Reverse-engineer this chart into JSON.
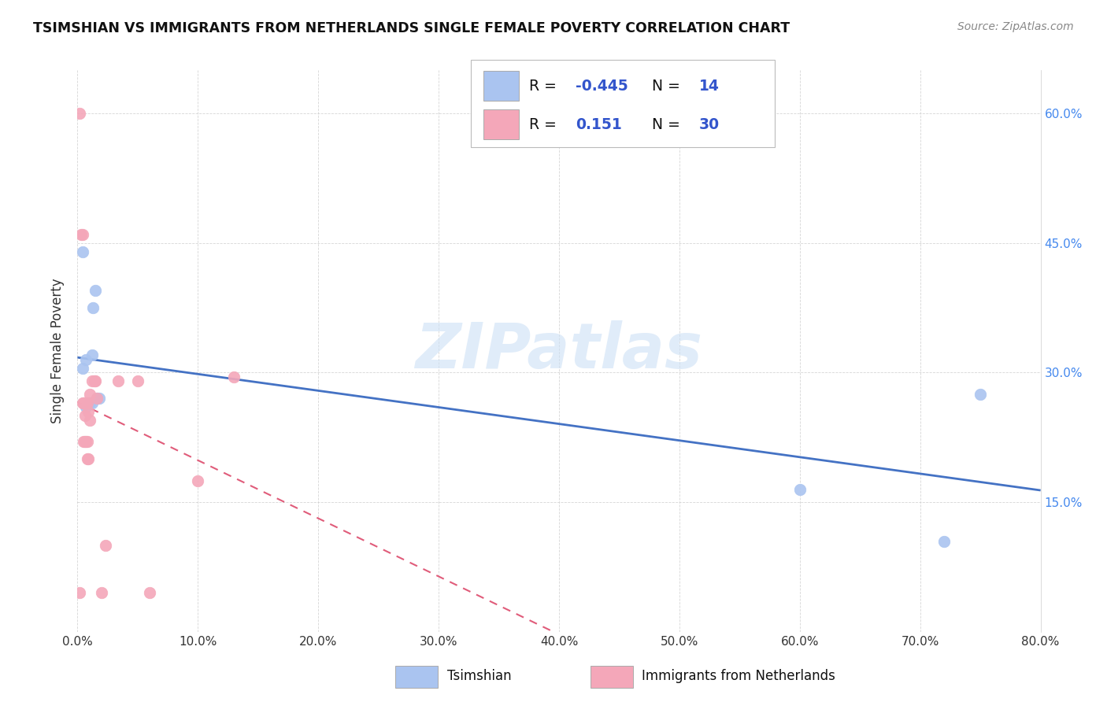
{
  "title": "TSIMSHIAN VS IMMIGRANTS FROM NETHERLANDS SINGLE FEMALE POVERTY CORRELATION CHART",
  "source": "Source: ZipAtlas.com",
  "ylabel": "Single Female Poverty",
  "xlim": [
    0.0,
    0.8
  ],
  "ylim": [
    0.0,
    0.65
  ],
  "tsimshian_color": "#aac4f0",
  "tsimshian_line_color": "#4472c4",
  "netherlands_color": "#f4a7b9",
  "netherlands_line_color": "#e05c7a",
  "tsimshian_R": -0.445,
  "tsimshian_N": 14,
  "netherlands_R": 0.151,
  "netherlands_N": 30,
  "legend_text_R": "R = ",
  "legend_text_N": "N = ",
  "legend_value_color": "#3355cc",
  "legend_label_color": "#111111",
  "right_axis_color": "#4488ee",
  "watermark": "ZIPatlas",
  "tsimshian_x": [
    0.004,
    0.004,
    0.007,
    0.007,
    0.01,
    0.012,
    0.012,
    0.013,
    0.015,
    0.016,
    0.018,
    0.6,
    0.72,
    0.75
  ],
  "tsimshian_y": [
    0.44,
    0.305,
    0.315,
    0.26,
    0.265,
    0.32,
    0.265,
    0.375,
    0.395,
    0.27,
    0.27,
    0.165,
    0.105,
    0.275
  ],
  "netherlands_x": [
    0.002,
    0.002,
    0.003,
    0.004,
    0.004,
    0.005,
    0.005,
    0.006,
    0.006,
    0.006,
    0.007,
    0.007,
    0.008,
    0.008,
    0.008,
    0.009,
    0.009,
    0.01,
    0.01,
    0.012,
    0.014,
    0.015,
    0.016,
    0.02,
    0.023,
    0.034,
    0.05,
    0.06,
    0.1,
    0.13
  ],
  "netherlands_y": [
    0.6,
    0.045,
    0.46,
    0.46,
    0.265,
    0.265,
    0.22,
    0.265,
    0.22,
    0.25,
    0.265,
    0.22,
    0.265,
    0.22,
    0.2,
    0.255,
    0.2,
    0.275,
    0.245,
    0.29,
    0.29,
    0.29,
    0.27,
    0.045,
    0.1,
    0.29,
    0.29,
    0.045,
    0.175,
    0.295
  ],
  "x_ticks": [
    0.0,
    0.1,
    0.2,
    0.3,
    0.4,
    0.5,
    0.6,
    0.7,
    0.8
  ],
  "x_tick_labels": [
    "0.0%",
    "10.0%",
    "20.0%",
    "30.0%",
    "40.0%",
    "50.0%",
    "60.0%",
    "70.0%",
    "80.0%"
  ],
  "y_ticks": [
    0.15,
    0.3,
    0.45,
    0.6
  ],
  "y_tick_labels": [
    "15.0%",
    "30.0%",
    "45.0%",
    "60.0%"
  ]
}
